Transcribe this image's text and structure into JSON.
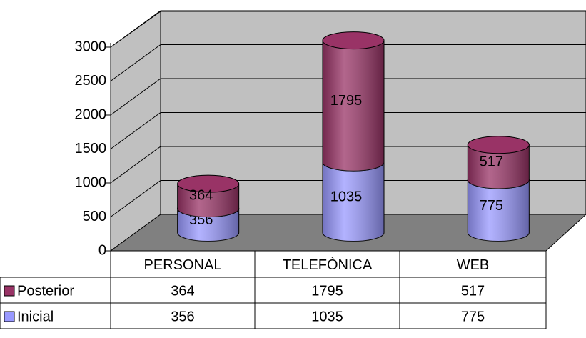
{
  "chart_data": {
    "type": "bar3d_stacked",
    "categories": [
      "PERSONAL",
      "TELEFÒNICA",
      "WEB"
    ],
    "series": [
      {
        "name": "Inicial",
        "color": "#9999ff",
        "values": [
          356,
          1035,
          775
        ]
      },
      {
        "name": "Posterior",
        "color": "#993366",
        "values": [
          364,
          1795,
          517
        ]
      }
    ],
    "ylim": [
      0,
      3000
    ],
    "yticks": [
      0,
      500,
      1000,
      1500,
      2000,
      2500,
      3000
    ],
    "grid": true
  }
}
